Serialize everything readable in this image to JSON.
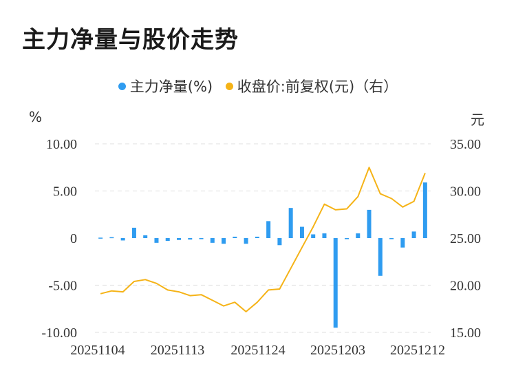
{
  "title": "主力净量与股价走势",
  "legend": {
    "series1": "主力净量(%)",
    "series2": "收盘价:前复权(元)（右）"
  },
  "units": {
    "left": "%",
    "right": "元"
  },
  "colors": {
    "bar": "#2f9cf0",
    "line": "#f5b317",
    "grid": "#e5e5e5"
  },
  "chart_data": {
    "type": "bar+line",
    "x_ticks": [
      "20251104",
      "20251113",
      "20251124",
      "20251203",
      "20251212"
    ],
    "left_axis": {
      "ticks": [
        "10.00",
        "5.00",
        "0",
        "-5.00",
        "-10.00"
      ],
      "range": [
        -10,
        10
      ]
    },
    "right_axis": {
      "ticks": [
        "35.00",
        "30.00",
        "25.00",
        "20.00",
        "15.00"
      ],
      "range": [
        15,
        35
      ]
    },
    "bars": [
      0.05,
      0.1,
      -0.25,
      1.1,
      0.3,
      -0.5,
      -0.3,
      -0.2,
      -0.15,
      -0.1,
      -0.5,
      -0.6,
      0.15,
      -0.6,
      0.15,
      1.8,
      -0.75,
      3.2,
      1.2,
      0.4,
      0.5,
      -9.5,
      -0.1,
      0.5,
      3.0,
      -4.0,
      -0.05,
      -1.0,
      0.7,
      5.9
    ],
    "line": [
      19.1,
      19.4,
      19.3,
      20.4,
      20.6,
      20.2,
      19.5,
      19.3,
      18.9,
      19.0,
      18.4,
      17.8,
      18.2,
      17.2,
      18.2,
      19.5,
      19.6,
      21.8,
      24.0,
      26.2,
      28.6,
      28.0,
      28.1,
      29.4,
      32.5,
      29.7,
      29.2,
      28.3,
      28.9,
      31.9
    ]
  }
}
